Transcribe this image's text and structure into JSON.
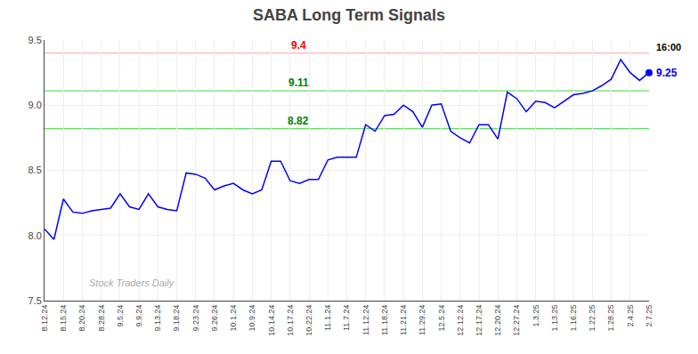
{
  "chart_data": {
    "type": "line",
    "title": "SABA Long Term Signals",
    "categories": [
      "8.12.24",
      null,
      "8.15.24",
      null,
      "8.20.24",
      null,
      "8.28.24",
      null,
      "9.5.24",
      null,
      "9.9.24",
      null,
      "9.13.24",
      null,
      "9.18.24",
      null,
      "9.23.24",
      null,
      "9.26.24",
      null,
      "10.1.24",
      null,
      "10.9.24",
      null,
      "10.14.24",
      null,
      "10.17.24",
      null,
      "10.22.24",
      null,
      "11.1.24",
      null,
      "11.7.24",
      null,
      "11.12.24",
      null,
      "11.18.24",
      null,
      "11.21.24",
      null,
      "11.29.24",
      null,
      "12.5.24",
      null,
      "12.12.24",
      null,
      "12.17.24",
      null,
      "12.20.24",
      null,
      "12.27.24",
      null,
      "1.3.25",
      null,
      "1.13.25",
      null,
      "1.16.25",
      null,
      "1.22.25",
      null,
      "1.28.25",
      null,
      "2.4.25",
      null,
      "2.7.25"
    ],
    "values": [
      8.05,
      7.97,
      8.28,
      8.18,
      8.17,
      8.19,
      8.2,
      8.21,
      8.32,
      8.22,
      8.2,
      8.32,
      8.22,
      8.2,
      8.19,
      8.48,
      8.47,
      8.44,
      8.35,
      8.38,
      8.4,
      8.35,
      8.32,
      8.35,
      8.57,
      8.57,
      8.42,
      8.4,
      8.43,
      8.43,
      8.58,
      8.6,
      8.6,
      8.6,
      8.85,
      8.8,
      8.92,
      8.93,
      9.0,
      8.95,
      8.83,
      9.0,
      9.01,
      8.8,
      8.75,
      8.71,
      8.85,
      8.85,
      8.74,
      9.1,
      9.05,
      8.95,
      9.03,
      9.02,
      8.98,
      9.03,
      9.08,
      9.09,
      9.11,
      9.15,
      9.2,
      9.35,
      9.25,
      9.19,
      9.25
    ],
    "color": "blue",
    "marker": "last",
    "ylim": [
      7.5,
      9.5
    ],
    "yticks": [
      7.5,
      {
        "value": 8,
        "label": "8.0"
      },
      8.5,
      {
        "value": 9,
        "label": "9.0"
      },
      9.5
    ],
    "grid": true,
    "hlines": [
      {
        "value": 9.4,
        "label": "9.4",
        "color": "#ffb3b3",
        "label_color": "red"
      },
      {
        "value": 9.11,
        "label": "9.11",
        "color": "#66dd66",
        "label_color": "green"
      },
      {
        "value": 8.82,
        "label": "8.82",
        "color": "#66dd66",
        "label_color": "green"
      }
    ],
    "annotations": [
      {
        "text": "Stock Traders Daily",
        "color": "#aaaaaa"
      },
      {
        "text": "16:00",
        "color": "black"
      },
      {
        "text": "9.25",
        "y": 9.25,
        "color": "blue"
      }
    ]
  }
}
